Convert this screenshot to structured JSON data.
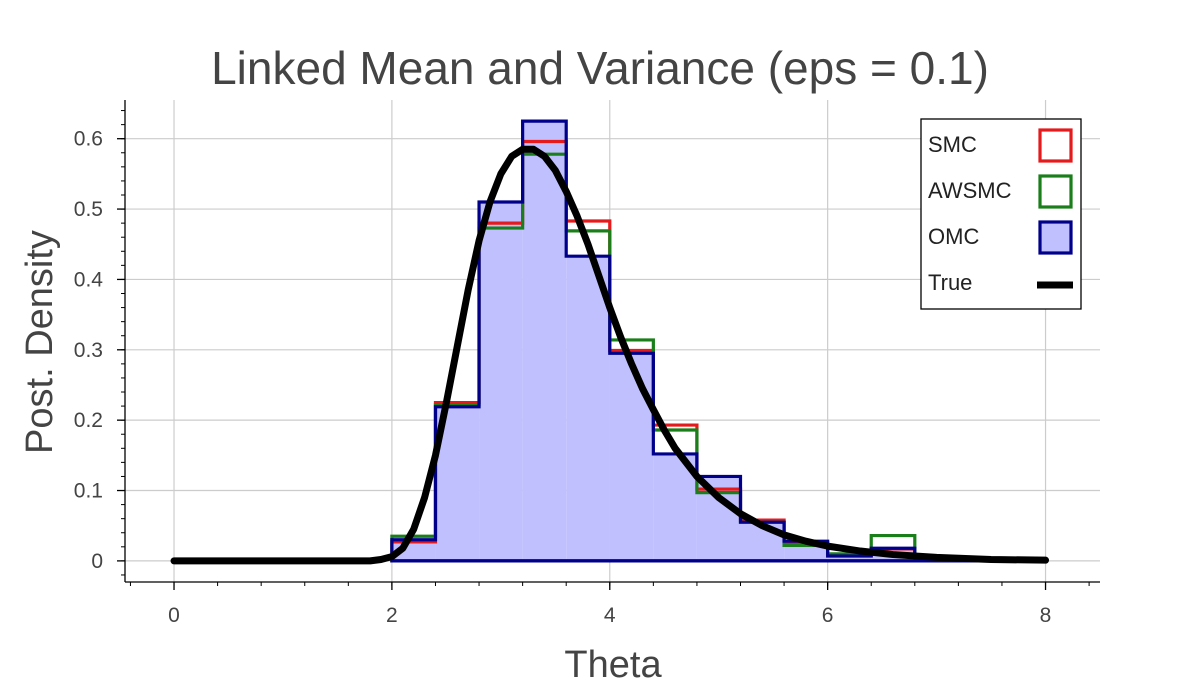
{
  "chart_data": {
    "type": "bar",
    "title": "Linked Mean and Variance  (eps = 0.1)",
    "xlabel": "Theta",
    "ylabel": "Post. Density",
    "xlim": [
      -0.45,
      8.5
    ],
    "ylim": [
      -0.03,
      0.655
    ],
    "xticks": [
      "0",
      "2",
      "4",
      "6",
      "8"
    ],
    "yticks": [
      "0",
      "0.1",
      "0.2",
      "0.3",
      "0.4",
      "0.5",
      "0.6"
    ],
    "grid": true,
    "legend_position": "top-right",
    "bin_edges": [
      2.0,
      2.4,
      2.8,
      3.2,
      3.6,
      4.0,
      4.4,
      4.8,
      5.2,
      5.6,
      6.0,
      6.4,
      6.8,
      7.2,
      7.6
    ],
    "series": [
      {
        "name": "SMC",
        "style": "step-outline",
        "color": "#e41a1c",
        "values": [
          0.027,
          0.225,
          0.48,
          0.596,
          0.483,
          0.299,
          0.193,
          0.102,
          0.058,
          0.026,
          0.008,
          0.017,
          0.006,
          0.003
        ]
      },
      {
        "name": "AWSMC",
        "style": "step-outline",
        "color": "#1a7f1a",
        "values": [
          0.035,
          0.222,
          0.473,
          0.578,
          0.469,
          0.314,
          0.186,
          0.097,
          0.055,
          0.022,
          0.01,
          0.036,
          0.005,
          0.002
        ]
      },
      {
        "name": "OMC",
        "style": "step-filled",
        "color": "#00008b",
        "fill": "#c0c0ff",
        "values": [
          0.03,
          0.219,
          0.51,
          0.625,
          0.433,
          0.295,
          0.152,
          0.12,
          0.055,
          0.028,
          0.007,
          0.018,
          0.004,
          0.004
        ]
      },
      {
        "name": "True",
        "style": "line",
        "color": "#000000",
        "x": [
          0.0,
          1.0,
          1.8,
          1.9,
          2.0,
          2.1,
          2.2,
          2.3,
          2.4,
          2.5,
          2.6,
          2.7,
          2.8,
          2.9,
          3.0,
          3.1,
          3.2,
          3.3,
          3.4,
          3.5,
          3.6,
          3.7,
          3.8,
          3.9,
          4.0,
          4.1,
          4.2,
          4.3,
          4.4,
          4.5,
          4.6,
          4.8,
          5.0,
          5.2,
          5.4,
          5.6,
          5.8,
          6.0,
          6.3,
          6.6,
          7.0,
          7.5,
          8.0
        ],
        "y": [
          0.0,
          0.0,
          0.0,
          0.002,
          0.006,
          0.018,
          0.045,
          0.09,
          0.15,
          0.225,
          0.305,
          0.385,
          0.455,
          0.51,
          0.55,
          0.575,
          0.585,
          0.585,
          0.575,
          0.555,
          0.525,
          0.49,
          0.45,
          0.405,
          0.36,
          0.318,
          0.28,
          0.245,
          0.215,
          0.186,
          0.16,
          0.12,
          0.09,
          0.067,
          0.05,
          0.037,
          0.028,
          0.021,
          0.014,
          0.009,
          0.005,
          0.002,
          0.001
        ]
      }
    ]
  }
}
